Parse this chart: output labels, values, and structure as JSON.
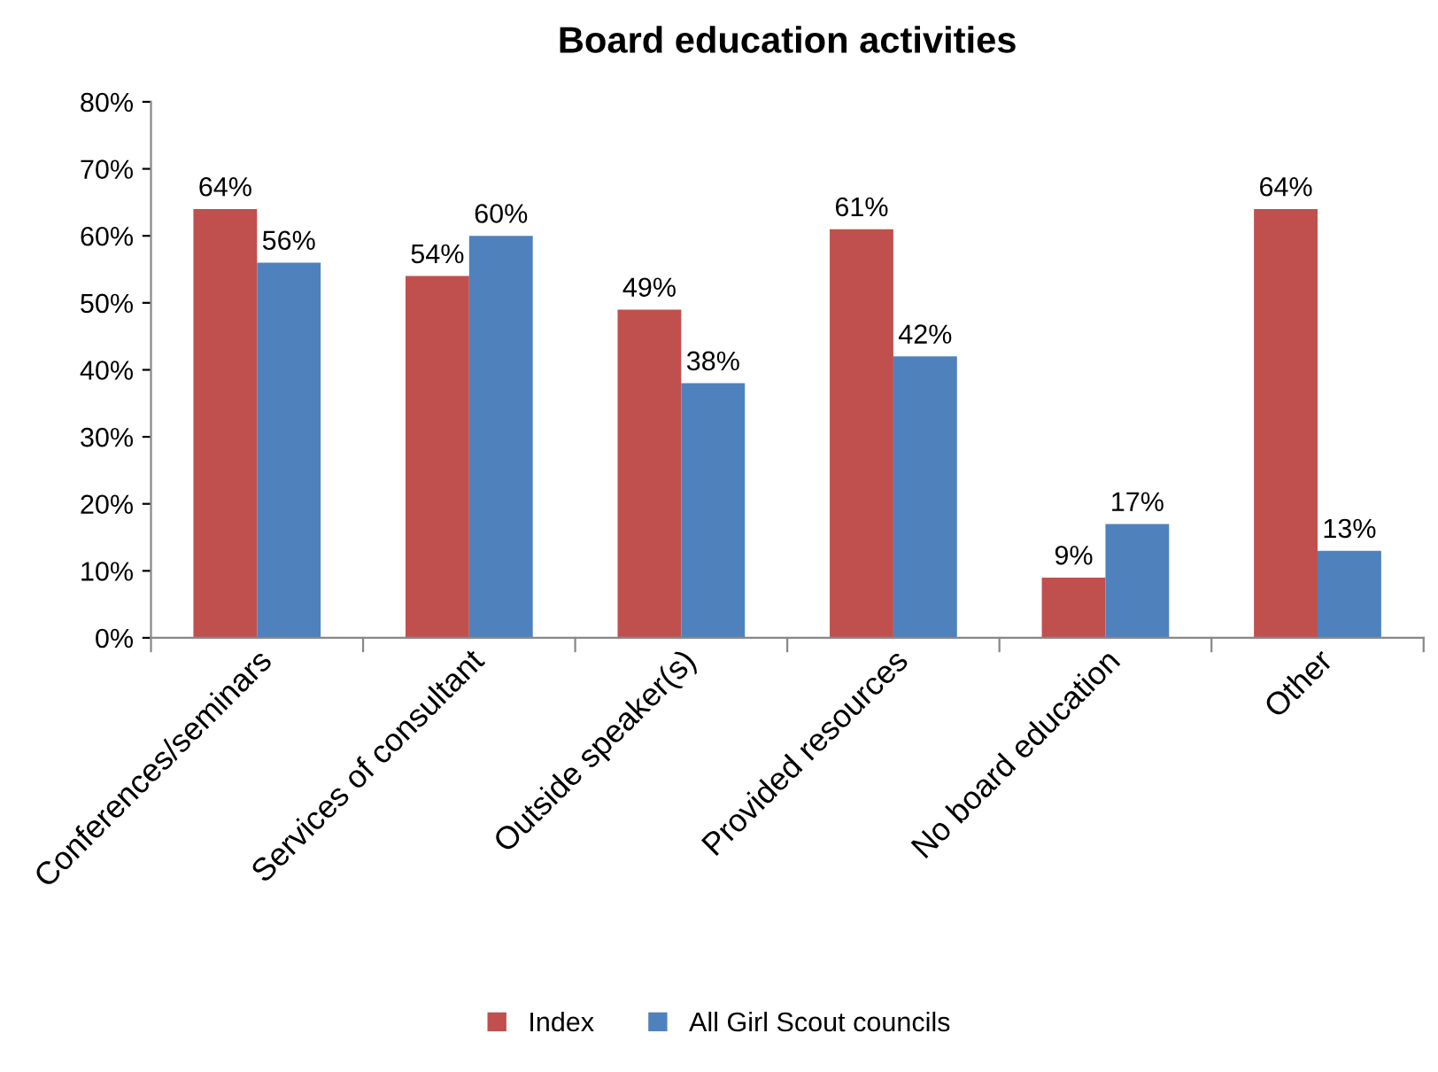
{
  "chart_data": {
    "type": "bar",
    "title": "Board education activities",
    "categories": [
      "Conferences/seminars",
      "Services of consultant",
      "Outside speaker(s)",
      "Provided resources",
      "No board education",
      "Other"
    ],
    "series": [
      {
        "name": "Index",
        "color": "#c0504d",
        "values": [
          64,
          54,
          49,
          61,
          9,
          64
        ],
        "value_labels": [
          "64%",
          "54%",
          "49%",
          "61%",
          "9%",
          "64%"
        ]
      },
      {
        "name": "All Girl Scout councils",
        "color": "#4f81bd",
        "values": [
          56,
          60,
          38,
          42,
          17,
          13
        ],
        "value_labels": [
          "56%",
          "60%",
          "38%",
          "42%",
          "17%",
          "13%"
        ]
      }
    ],
    "ylim": [
      0,
      80
    ],
    "yticks": [
      {
        "value": 0,
        "label": "0%"
      },
      {
        "value": 10,
        "label": "10%"
      },
      {
        "value": 20,
        "label": "20%"
      },
      {
        "value": 30,
        "label": "30%"
      },
      {
        "value": 40,
        "label": "40%"
      },
      {
        "value": 50,
        "label": "50%"
      },
      {
        "value": 60,
        "label": "60%"
      },
      {
        "value": 70,
        "label": "70%"
      },
      {
        "value": 80,
        "label": "80%"
      }
    ],
    "grid": false,
    "legend": "bottom"
  }
}
